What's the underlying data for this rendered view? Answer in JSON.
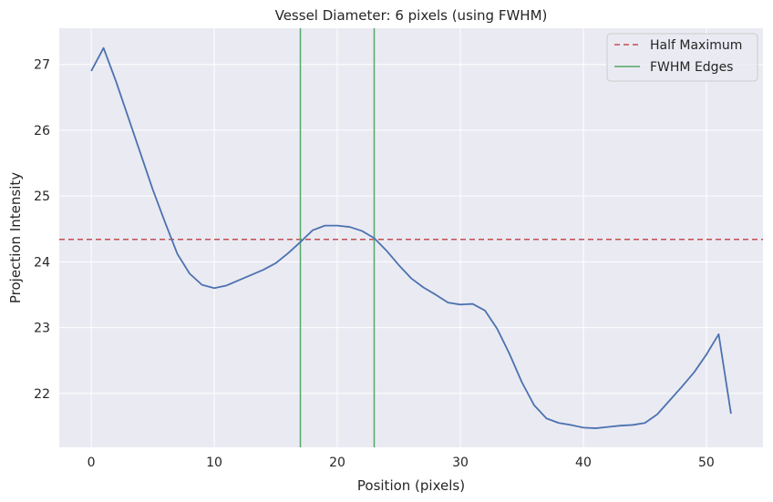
{
  "chart_data": {
    "type": "line",
    "title": "Vessel Diameter: 6 pixels (using FWHM)",
    "xlabel": "Position (pixels)",
    "ylabel": "Projection Intensity",
    "xlim": [
      -2.6,
      54.6
    ],
    "ylim": [
      21.18,
      27.55
    ],
    "xticks": [
      0,
      10,
      20,
      30,
      40,
      50
    ],
    "yticks": [
      22,
      23,
      24,
      25,
      26,
      27
    ],
    "grid": true,
    "legend_position": "top-right",
    "colors": {
      "line": "#4c72b0",
      "half_max": "#dd8452",
      "half_max_dash": "#c44e52",
      "fwhm": "#55a868",
      "background": "#eaeaf2",
      "grid": "#ffffff"
    },
    "series": [
      {
        "name": "Projection Intensity",
        "x": [
          0,
          1,
          2,
          3,
          4,
          5,
          6,
          7,
          8,
          9,
          10,
          11,
          12,
          13,
          14,
          15,
          16,
          17,
          18,
          19,
          20,
          21,
          22,
          23,
          24,
          25,
          26,
          27,
          28,
          29,
          30,
          31,
          32,
          33,
          34,
          35,
          36,
          37,
          38,
          39,
          40,
          41,
          42,
          43,
          44,
          45,
          46,
          47,
          48,
          49,
          50,
          51,
          52
        ],
        "values": [
          26.9,
          27.25,
          26.75,
          26.2,
          25.65,
          25.1,
          24.6,
          24.12,
          23.82,
          23.65,
          23.6,
          23.64,
          23.72,
          23.8,
          23.88,
          23.98,
          24.13,
          24.3,
          24.48,
          24.55,
          24.55,
          24.53,
          24.47,
          24.36,
          24.17,
          23.95,
          23.75,
          23.61,
          23.5,
          23.38,
          23.35,
          23.36,
          23.26,
          22.98,
          22.6,
          22.17,
          21.82,
          21.62,
          21.55,
          21.52,
          21.48,
          21.47,
          21.49,
          21.51,
          21.52,
          21.55,
          21.68,
          21.89,
          22.1,
          22.32,
          22.59,
          22.9,
          21.69
        ]
      }
    ],
    "half_maximum": 24.34,
    "fwhm_edges": [
      17,
      23
    ],
    "legend": [
      {
        "label": "Half Maximum",
        "style": "dashed-red"
      },
      {
        "label": "FWHM Edges",
        "style": "solid-green"
      }
    ]
  }
}
